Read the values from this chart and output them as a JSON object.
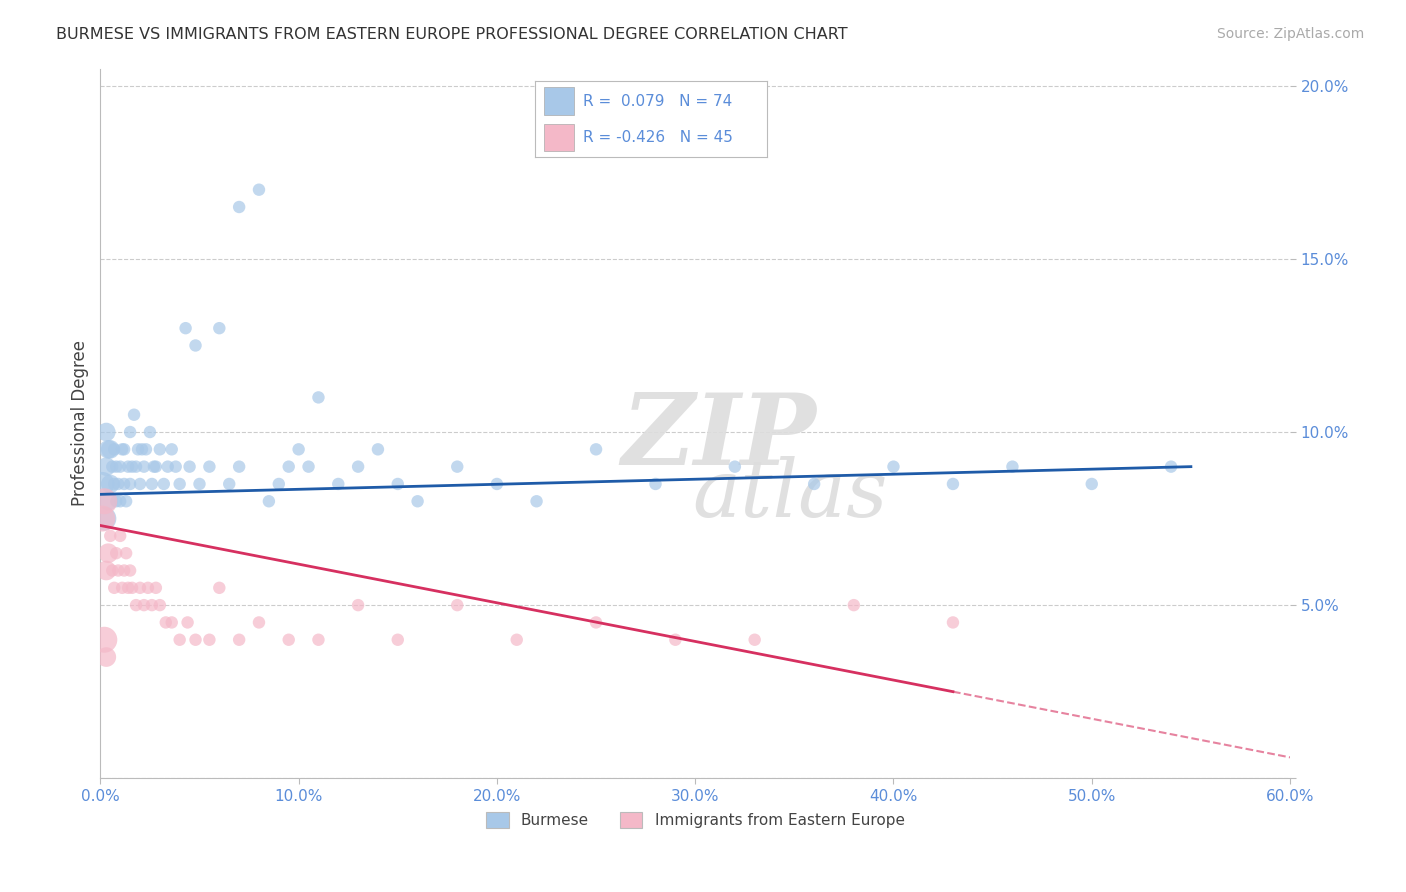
{
  "title": "BURMESE VS IMMIGRANTS FROM EASTERN EUROPE PROFESSIONAL DEGREE CORRELATION CHART",
  "source": "Source: ZipAtlas.com",
  "ylabel": "Professional Degree",
  "legend_labels": [
    "Burmese",
    "Immigrants from Eastern Europe"
  ],
  "blue_R": 0.079,
  "blue_N": 74,
  "pink_R": -0.426,
  "pink_N": 45,
  "blue_color": "#a8c8e8",
  "pink_color": "#f4b8c8",
  "blue_line_color": "#1f5ba8",
  "pink_line_color": "#d63060",
  "background_color": "#ffffff",
  "grid_color": "#cccccc",
  "xmin": 0.0,
  "xmax": 0.6,
  "ymin": 0.0,
  "ymax": 0.205,
  "tick_color": "#5b8dd9",
  "blue_x": [
    0.001,
    0.002,
    0.003,
    0.003,
    0.004,
    0.004,
    0.005,
    0.005,
    0.006,
    0.007,
    0.007,
    0.008,
    0.008,
    0.009,
    0.01,
    0.01,
    0.011,
    0.012,
    0.012,
    0.013,
    0.014,
    0.015,
    0.015,
    0.016,
    0.017,
    0.018,
    0.019,
    0.02,
    0.021,
    0.022,
    0.023,
    0.025,
    0.026,
    0.027,
    0.028,
    0.03,
    0.032,
    0.034,
    0.036,
    0.038,
    0.04,
    0.043,
    0.045,
    0.048,
    0.05,
    0.055,
    0.06,
    0.065,
    0.07,
    0.08,
    0.09,
    0.1,
    0.11,
    0.12,
    0.13,
    0.14,
    0.15,
    0.16,
    0.18,
    0.2,
    0.22,
    0.25,
    0.28,
    0.32,
    0.36,
    0.4,
    0.43,
    0.46,
    0.5,
    0.54,
    0.07,
    0.085,
    0.095,
    0.105
  ],
  "blue_y": [
    0.085,
    0.075,
    0.09,
    0.1,
    0.08,
    0.095,
    0.085,
    0.095,
    0.09,
    0.085,
    0.095,
    0.08,
    0.09,
    0.085,
    0.08,
    0.09,
    0.095,
    0.085,
    0.095,
    0.08,
    0.09,
    0.085,
    0.1,
    0.09,
    0.105,
    0.09,
    0.095,
    0.085,
    0.095,
    0.09,
    0.095,
    0.1,
    0.085,
    0.09,
    0.09,
    0.095,
    0.085,
    0.09,
    0.095,
    0.09,
    0.085,
    0.13,
    0.09,
    0.125,
    0.085,
    0.09,
    0.13,
    0.085,
    0.09,
    0.17,
    0.085,
    0.095,
    0.11,
    0.085,
    0.09,
    0.095,
    0.085,
    0.08,
    0.09,
    0.085,
    0.08,
    0.095,
    0.085,
    0.09,
    0.085,
    0.09,
    0.085,
    0.09,
    0.085,
    0.09,
    0.165,
    0.08,
    0.09,
    0.09
  ],
  "blue_sizes": [
    80,
    80,
    80,
    80,
    80,
    80,
    80,
    80,
    80,
    80,
    80,
    80,
    80,
    80,
    80,
    80,
    80,
    80,
    80,
    80,
    80,
    80,
    80,
    80,
    80,
    80,
    80,
    80,
    80,
    80,
    80,
    80,
    80,
    80,
    80,
    80,
    80,
    80,
    80,
    80,
    80,
    80,
    80,
    80,
    80,
    80,
    80,
    80,
    80,
    80,
    80,
    80,
    80,
    80,
    80,
    80,
    80,
    80,
    80,
    80,
    80,
    80,
    80,
    80,
    80,
    80,
    80,
    80,
    80,
    80,
    80,
    80,
    80,
    80
  ],
  "pink_x": [
    0.001,
    0.002,
    0.003,
    0.004,
    0.005,
    0.006,
    0.007,
    0.008,
    0.009,
    0.01,
    0.011,
    0.012,
    0.013,
    0.014,
    0.015,
    0.016,
    0.018,
    0.02,
    0.022,
    0.024,
    0.026,
    0.028,
    0.03,
    0.033,
    0.036,
    0.04,
    0.044,
    0.048,
    0.055,
    0.06,
    0.07,
    0.08,
    0.095,
    0.11,
    0.13,
    0.15,
    0.18,
    0.21,
    0.25,
    0.29,
    0.33,
    0.38,
    0.43,
    0.002,
    0.003
  ],
  "pink_y": [
    0.075,
    0.08,
    0.06,
    0.065,
    0.07,
    0.06,
    0.055,
    0.065,
    0.06,
    0.07,
    0.055,
    0.06,
    0.065,
    0.055,
    0.06,
    0.055,
    0.05,
    0.055,
    0.05,
    0.055,
    0.05,
    0.055,
    0.05,
    0.045,
    0.045,
    0.04,
    0.045,
    0.04,
    0.04,
    0.055,
    0.04,
    0.045,
    0.04,
    0.04,
    0.05,
    0.04,
    0.05,
    0.04,
    0.045,
    0.04,
    0.04,
    0.05,
    0.045,
    0.04,
    0.035
  ],
  "pink_sizes": [
    80,
    80,
    80,
    80,
    80,
    80,
    80,
    80,
    80,
    80,
    80,
    80,
    80,
    80,
    80,
    80,
    80,
    80,
    80,
    80,
    80,
    80,
    80,
    80,
    80,
    80,
    80,
    80,
    80,
    80,
    80,
    80,
    80,
    80,
    80,
    80,
    80,
    80,
    80,
    80,
    80,
    80,
    80,
    80,
    80
  ]
}
